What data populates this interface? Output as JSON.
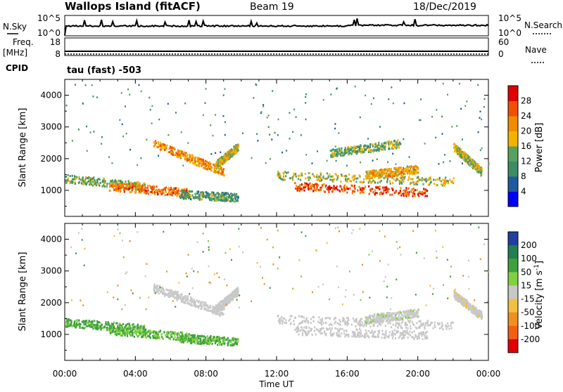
{
  "header": {
    "title": "Wallops Island (fitACF)",
    "beam": "Beam 19",
    "date": "18/Dec/2019"
  },
  "status_panels": {
    "nsky_label": "N.Sky",
    "nsky_ticks": [
      "10^5",
      "10^0"
    ],
    "nsearch_label": "N.Search",
    "nsearch_ticks": [
      "10^5",
      "10^0"
    ],
    "freq_label": "Freq.",
    "freq_unit": "[MHz]",
    "freq_ticks": [
      "18",
      "8"
    ],
    "nave_label": "Nave",
    "nave_ticks": [
      "60",
      "0"
    ],
    "cpid_label": "CPID",
    "cpid_text": "tau (fast) -503"
  },
  "colors": {
    "power": [
      "#0000ff",
      "#1e5aa0",
      "#3c8c64",
      "#58a060",
      "#f0b400",
      "#f08c00",
      "#f05000",
      "#e00000"
    ],
    "velocity": [
      "#2040a0",
      "#208050",
      "#40a040",
      "#80d040",
      "#c8c8c8",
      "#f0c040",
      "#f09020",
      "#f06010",
      "#e00000"
    ]
  },
  "chart_data": [
    {
      "type": "heatmap",
      "name": "power",
      "ylabel": "Slant Range [km]",
      "yticks": [
        "1000",
        "2000",
        "3000",
        "4000"
      ],
      "ylim": [
        180,
        4500
      ],
      "colorbar_label": "Power [dB]",
      "colorbar_ticks": [
        "4",
        "8",
        "12",
        "16",
        "20",
        "24",
        "28"
      ],
      "colorbar_range": [
        0,
        32
      ],
      "bands": [
        {
          "x": [
            0.0,
            4.5
          ],
          "y_start": 1400,
          "y_end": 1150,
          "value": 14
        },
        {
          "x": [
            2.5,
            7.0
          ],
          "y_start": 1150,
          "y_end": 950,
          "value": 24
        },
        {
          "x": [
            6.5,
            9.8
          ],
          "y_start": 900,
          "y_end": 800,
          "value": 12
        },
        {
          "x": [
            5.0,
            9.0
          ],
          "y_start": 2500,
          "y_end": 1600,
          "value": 22
        },
        {
          "x": [
            8.5,
            9.8
          ],
          "y_start": 1800,
          "y_end": 2400,
          "value": 18
        },
        {
          "x": [
            12.0,
            22.0
          ],
          "y_start": 1500,
          "y_end": 1300,
          "value": 16
        },
        {
          "x": [
            13.0,
            20.5
          ],
          "y_start": 1150,
          "y_end": 950,
          "value": 26
        },
        {
          "x": [
            17.0,
            20.0
          ],
          "y_start": 1500,
          "y_end": 1700,
          "value": 20
        },
        {
          "x": [
            15.0,
            19.0
          ],
          "y_start": 2200,
          "y_end": 2500,
          "value": 14
        },
        {
          "x": [
            22.0,
            23.6
          ],
          "y_start": 2400,
          "y_end": 1600,
          "value": 16
        }
      ]
    },
    {
      "type": "heatmap",
      "name": "velocity",
      "xlabel": "Time UT",
      "xticks": [
        "00:00",
        "04:00",
        "08:00",
        "12:00",
        "16:00",
        "20:00",
        "00:00"
      ],
      "xlim": [
        0,
        24
      ],
      "ylabel": "Slant Range [km]",
      "yticks": [
        "1000",
        "2000",
        "3000",
        "4000"
      ],
      "ylim": [
        180,
        4500
      ],
      "colorbar_label": "Velocity [m s^-1]",
      "colorbar_ticks": [
        "200",
        "100",
        "50",
        "15",
        "-15",
        "-50",
        "-100",
        "-200"
      ],
      "bands": [
        {
          "x": [
            0.0,
            4.5
          ],
          "y_start": 1400,
          "y_end": 1200,
          "value": 40
        },
        {
          "x": [
            2.5,
            7.0
          ],
          "y_start": 1150,
          "y_end": 950,
          "value": 30
        },
        {
          "x": [
            6.5,
            9.8
          ],
          "y_start": 900,
          "y_end": 800,
          "value": 35
        },
        {
          "x": [
            5.0,
            9.0
          ],
          "y_start": 2500,
          "y_end": 1700,
          "value": 0
        },
        {
          "x": [
            8.5,
            9.8
          ],
          "y_start": 1800,
          "y_end": 2400,
          "value": 0
        },
        {
          "x": [
            12.0,
            22.0
          ],
          "y_start": 1500,
          "y_end": 1300,
          "value": 0
        },
        {
          "x": [
            13.0,
            20.5
          ],
          "y_start": 1150,
          "y_end": 1000,
          "value": 0
        },
        {
          "x": [
            17.0,
            20.0
          ],
          "y_start": 1500,
          "y_end": 1700,
          "value": 5
        },
        {
          "x": [
            22.0,
            23.6
          ],
          "y_start": 2300,
          "y_end": 1600,
          "value": -5
        }
      ]
    }
  ]
}
